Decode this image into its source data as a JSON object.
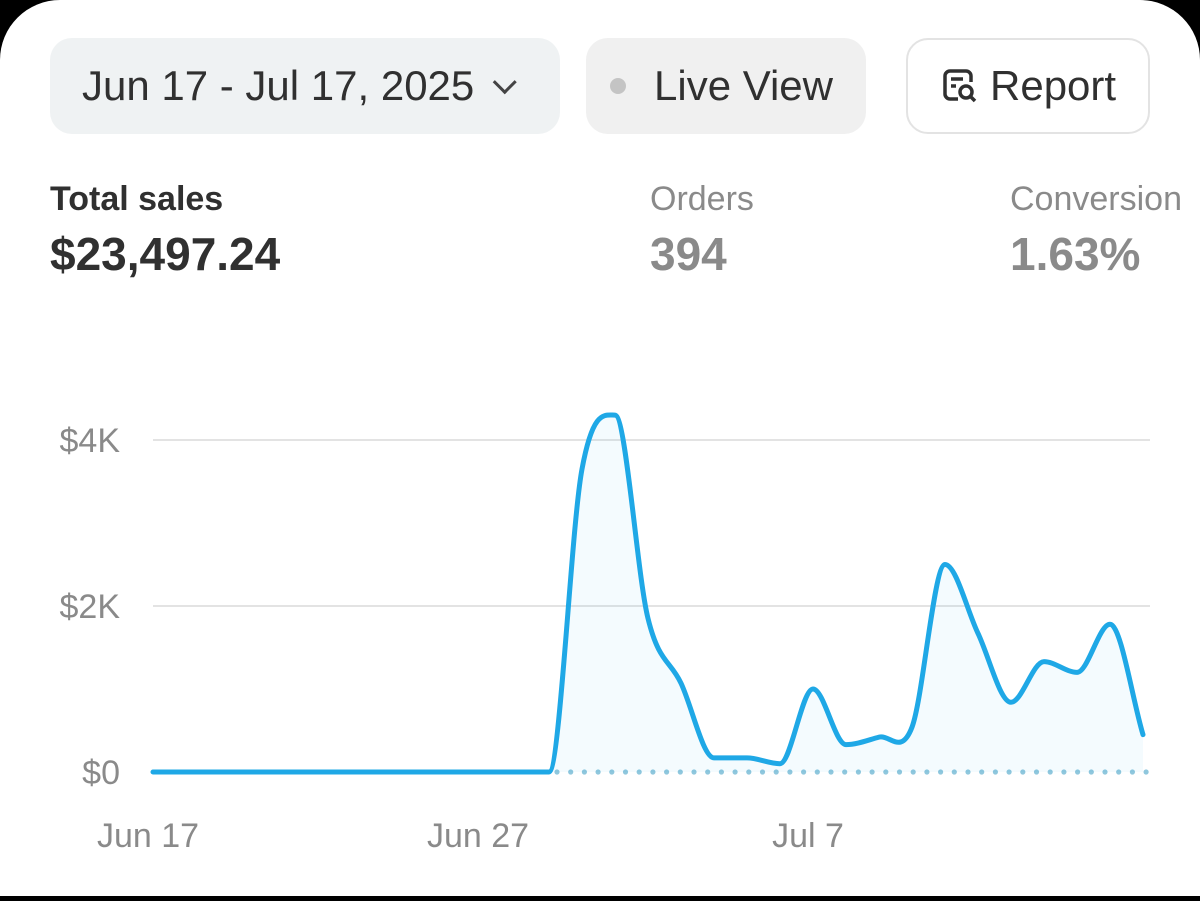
{
  "toolbar": {
    "date_range": "Jun 17 - Jul 17, 2025",
    "live_view": "Live View",
    "report": "Report"
  },
  "metrics": [
    {
      "label": "Total sales",
      "value": "$23,497.24"
    },
    {
      "label": "Orders",
      "value": "394"
    },
    {
      "label": "Conversion",
      "value": "1.63%"
    }
  ],
  "colors": {
    "line": "#1fa8e6",
    "comparison": "#8fc7dd",
    "grid": "#e3e3e3"
  },
  "chart_data": {
    "type": "line",
    "x_ticks": [
      "Jun 17",
      "Jun 27",
      "Jul 7"
    ],
    "y_ticks": [
      "$0",
      "$2K",
      "$4K"
    ],
    "y_tick_values": [
      0,
      2000,
      4000
    ],
    "ylim": [
      0,
      4500
    ],
    "grid": true,
    "x": [
      "Jun 17",
      "Jun 18",
      "Jun 19",
      "Jun 20",
      "Jun 21",
      "Jun 22",
      "Jun 23",
      "Jun 24",
      "Jun 25",
      "Jun 26",
      "Jun 27",
      "Jun 28",
      "Jun 29",
      "Jun 30",
      "Jul 1",
      "Jul 2",
      "Jul 3",
      "Jul 4",
      "Jul 5",
      "Jul 6",
      "Jul 7",
      "Jul 8",
      "Jul 9",
      "Jul 10",
      "Jul 11",
      "Jul 12",
      "Jul 13",
      "Jul 14",
      "Jul 15",
      "Jul 16",
      "Jul 17"
    ],
    "series": [
      {
        "values": [
          0,
          0,
          0,
          0,
          0,
          0,
          0,
          0,
          0,
          0,
          0,
          0,
          0,
          3650,
          4300,
          1850,
          1070,
          170,
          170,
          100,
          1000,
          330,
          420,
          540,
          2500,
          1670,
          840,
          1330,
          1200,
          1780,
          450
        ]
      },
      {
        "style": "dotted",
        "values": [
          null,
          null,
          null,
          null,
          null,
          null,
          null,
          null,
          null,
          null,
          null,
          null,
          0,
          0,
          0,
          0,
          0,
          0,
          0,
          0,
          0,
          0,
          0,
          0,
          0,
          0,
          0,
          0,
          0,
          0,
          0
        ]
      }
    ]
  }
}
